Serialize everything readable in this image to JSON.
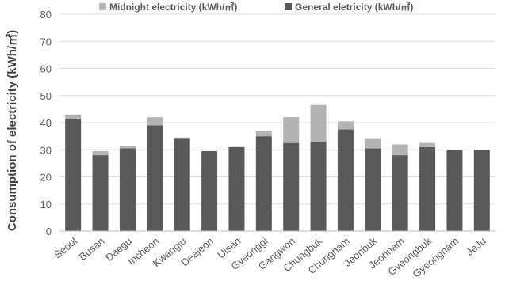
{
  "chart_data": {
    "type": "bar",
    "stacked": true,
    "ylabel": "Consumption of electricity (kWh/㎡)",
    "xlabel": "",
    "ylim": [
      0,
      80
    ],
    "yticks": [
      0,
      10,
      20,
      30,
      40,
      50,
      60,
      70,
      80
    ],
    "grid": true,
    "legend_position": "top-right",
    "categories": [
      "Seoul",
      "Busan",
      "Daegu",
      "Incheon",
      "Kwangju",
      "Deajeon",
      "Ulsan",
      "Gyeonggi",
      "Gangwon",
      "Chungbuk",
      "Chungnam",
      "Jeonbuk",
      "Jeonnam",
      "Gyeongbuk",
      "Gyeongnam",
      "JeJu"
    ],
    "series": [
      {
        "name": "General eletricity (kWh/㎡)",
        "color": "#595959",
        "values": [
          41.5,
          28,
          30.5,
          39,
          34,
          29.5,
          31,
          35,
          32.5,
          33,
          37.5,
          30.5,
          28,
          31,
          30,
          30
        ]
      },
      {
        "name": "Midnight electricity (kWh/㎡)",
        "color": "#b3b3b3",
        "values": [
          1.5,
          1.5,
          1,
          3,
          0.5,
          0,
          0,
          2,
          9.5,
          13.5,
          3,
          3.5,
          4,
          1.5,
          0,
          0
        ]
      }
    ]
  },
  "legend_order": [
    1,
    0
  ]
}
